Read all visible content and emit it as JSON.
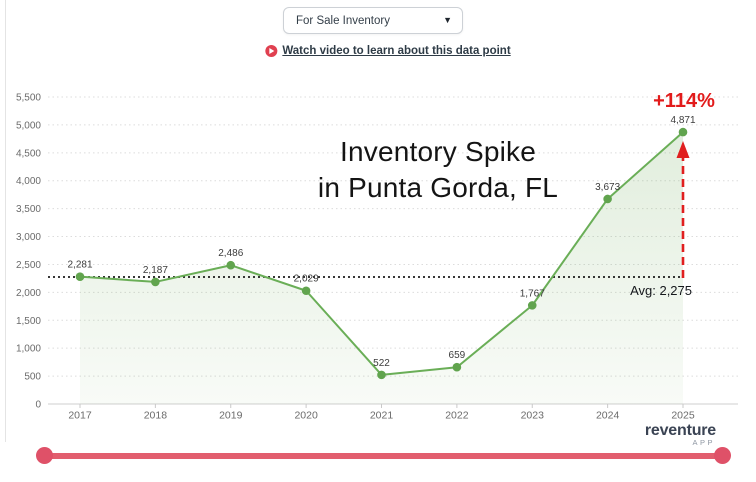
{
  "header": {
    "metric_dropdown": {
      "value": "For Sale Inventory"
    },
    "video_link_label": "Watch video to learn about this data point"
  },
  "chart_data": {
    "type": "area",
    "title": "Inventory Spike in Punta Gorda, FL",
    "title_lines": [
      "Inventory Spike",
      "in Punta Gorda, FL"
    ],
    "x": [
      "2017",
      "2018",
      "2019",
      "2020",
      "2021",
      "2022",
      "2023",
      "2024",
      "2025"
    ],
    "series": [
      {
        "name": "For Sale Inventory",
        "values": [
          2281,
          2187,
          2486,
          2029,
          522,
          659,
          1767,
          3673,
          4871
        ]
      }
    ],
    "point_labels": [
      "2,281",
      "2,187",
      "2,486",
      "2,029",
      "522",
      "659",
      "1,767",
      "3,673",
      "4,871"
    ],
    "xlabel": "",
    "ylabel": "",
    "ylim": [
      0,
      5500
    ],
    "ytick_step": 500,
    "yticklabels": [
      "0",
      "500",
      "1,000",
      "1,500",
      "2,000",
      "2,500",
      "3,000",
      "3,500",
      "4,000",
      "4,500",
      "5,000",
      "5,500"
    ],
    "grid": true,
    "legend": false,
    "average": {
      "value": 2275,
      "label": "Avg: 2,275"
    },
    "annotation": {
      "pct_change": "+114%"
    },
    "colors": {
      "line": "#6aae57",
      "point": "#61a44e",
      "fill_top": "rgba(120,176,100,0.22)",
      "fill_bottom": "rgba(120,176,100,0.05)",
      "average_line": "#1b1b1b",
      "arrow": "#e01f1f",
      "annotation_text": "#e21b1b",
      "grid": "#dcdcdc",
      "axis_text": "#6b6b6b",
      "scrollbar": "#e25e6e"
    }
  },
  "branding": {
    "logo_text": "reventure",
    "logo_sub": "APP"
  }
}
